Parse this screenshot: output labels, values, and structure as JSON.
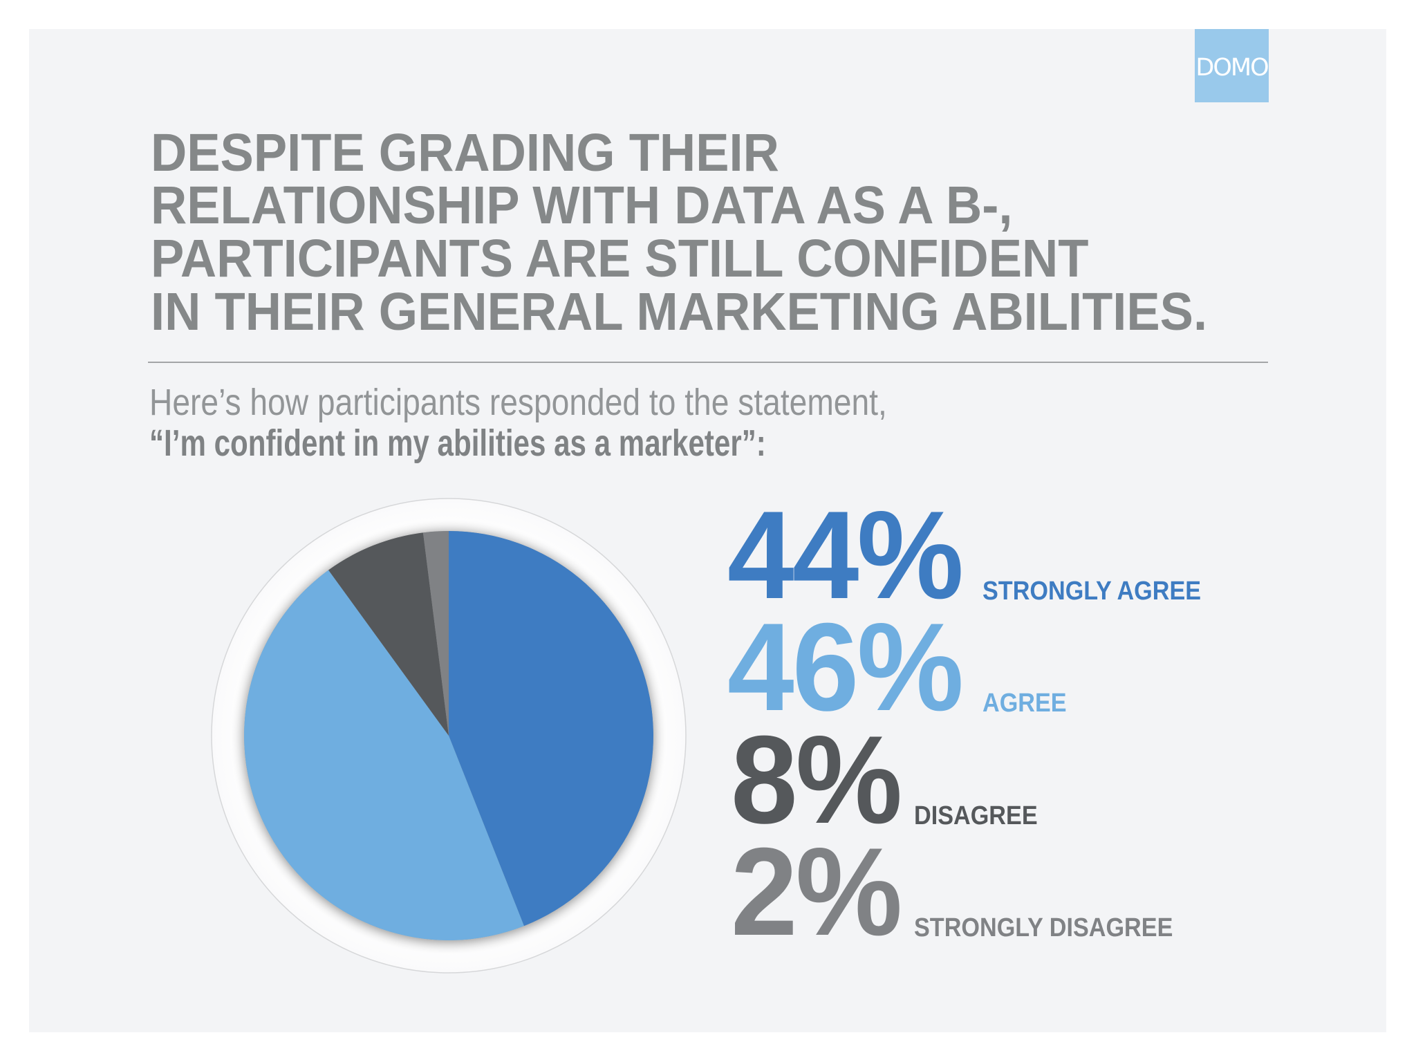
{
  "logo": {
    "text": "DOMO",
    "color": "#99c9eb"
  },
  "title": {
    "lines": [
      "DESPITE GRADING THEIR",
      "RELATIONSHIP WITH DATA AS A B-,",
      "PARTICIPANTS ARE STILL CONFIDENT",
      "IN THEIR GENERAL MARKETING ABILITIES."
    ]
  },
  "subtitle": {
    "line1": "Here’s how participants responded to the statement,",
    "line2": "“I’m confident in my abilities as a marketer”:"
  },
  "stats": [
    {
      "value": "44%",
      "label": "STRONGLY AGREE",
      "color": "#3e7cc2"
    },
    {
      "value": "46%",
      "label": "AGREE",
      "color": "#6faee0"
    },
    {
      "value": "8%",
      "label": "DISAGREE",
      "color": "#55585b"
    },
    {
      "value": "2%",
      "label": "STRONGLY DISAGREE",
      "color": "#808285"
    }
  ],
  "chart_data": {
    "type": "pie",
    "title": "“I’m confident in my abilities as a marketer”",
    "categories": [
      "Strongly Agree",
      "Agree",
      "Disagree",
      "Strongly Disagree"
    ],
    "values": [
      44,
      46,
      8,
      2
    ],
    "unit": "%",
    "colors": [
      "#3e7cc2",
      "#6faee0",
      "#55585b",
      "#808285"
    ],
    "start_angle": "12 o'clock",
    "direction": "clockwise",
    "legend_position": "right"
  }
}
